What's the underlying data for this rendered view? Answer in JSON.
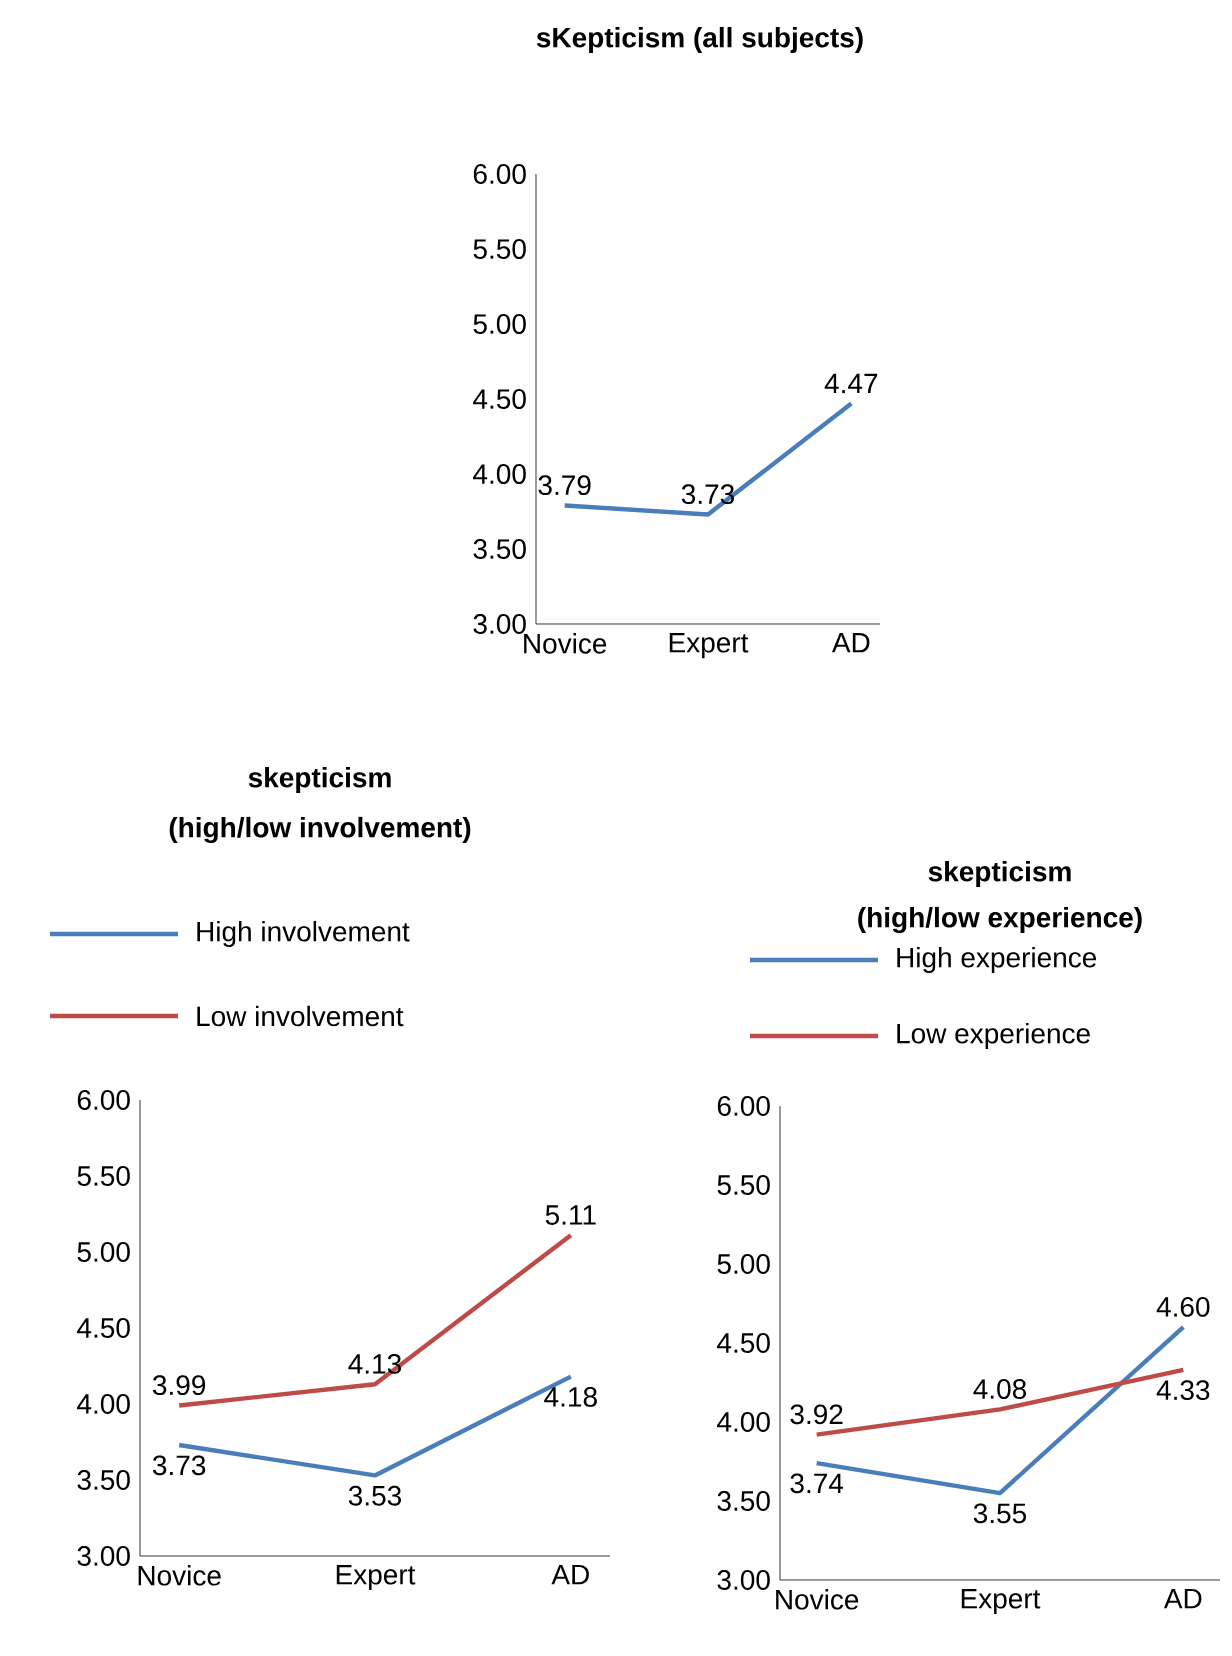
{
  "chart_data": [
    {
      "type": "line",
      "title": "sKepticism  (all subjects)",
      "categories": [
        "Novice",
        "Expert",
        "AD"
      ],
      "series": [
        {
          "color": "#4a7ebb",
          "values": [
            3.79,
            3.73,
            4.47
          ],
          "value_labels": [
            "3.79",
            "3.73",
            "4.47"
          ]
        }
      ],
      "ylim": [
        3,
        6
      ],
      "yticks": [
        {
          "value": 3,
          "label": "3.00"
        },
        {
          "value": 3.5,
          "label": "3.50"
        },
        {
          "value": 4,
          "label": "4.00"
        },
        {
          "value": 4.5,
          "label": "4.50"
        },
        {
          "value": 5,
          "label": "5.00"
        },
        {
          "value": 5.5,
          "label": "5.50"
        },
        {
          "value": 6,
          "label": "6.00"
        }
      ],
      "marker": "none"
    },
    {
      "type": "line",
      "title": "skepticism",
      "subtitle": "(high/low involvement)",
      "categories": [
        "Novice",
        "Expert",
        "AD"
      ],
      "series": [
        {
          "name": "High involvement",
          "color": "#4a7ebb",
          "values": [
            3.73,
            3.53,
            4.18
          ],
          "value_labels": [
            "3.73",
            "3.53",
            "4.18"
          ]
        },
        {
          "name": "Low involvement",
          "color": "#be4b48",
          "values": [
            3.99,
            4.13,
            5.11
          ],
          "value_labels": [
            "3.99",
            "4.13",
            "5.11"
          ]
        }
      ],
      "ylim": [
        3,
        6
      ],
      "yticks": [
        {
          "value": 3,
          "label": "3.00"
        },
        {
          "value": 3.5,
          "label": "3.50"
        },
        {
          "value": 4,
          "label": "4.00"
        },
        {
          "value": 4.5,
          "label": "4.50"
        },
        {
          "value": 5,
          "label": "5.00"
        },
        {
          "value": 5.5,
          "label": "5.50"
        },
        {
          "value": 6,
          "label": "6.00"
        }
      ],
      "marker": "none",
      "legend": "top"
    },
    {
      "type": "line",
      "title": "skepticism",
      "subtitle": "(high/low experience)",
      "categories": [
        "Novice",
        "Expert",
        "AD"
      ],
      "series": [
        {
          "name": "High experience",
          "color": "#4a7ebb",
          "values": [
            3.74,
            3.55,
            4.6
          ],
          "value_labels": [
            "3.74",
            "3.55",
            "4.60"
          ]
        },
        {
          "name": "Low  experience",
          "color": "#be4b48",
          "values": [
            3.92,
            4.08,
            4.33
          ],
          "value_labels": [
            "3.92",
            "4.08",
            "4.33"
          ]
        }
      ],
      "ylim": [
        3,
        6
      ],
      "yticks": [
        {
          "value": 3,
          "label": "3.00"
        },
        {
          "value": 3.5,
          "label": "3.50"
        },
        {
          "value": 4,
          "label": "4.00"
        },
        {
          "value": 4.5,
          "label": "4.50"
        },
        {
          "value": 5,
          "label": "5.00"
        },
        {
          "value": 5.5,
          "label": "5.50"
        },
        {
          "value": 6,
          "label": "6.00"
        }
      ],
      "marker": "none",
      "legend": "top"
    }
  ]
}
